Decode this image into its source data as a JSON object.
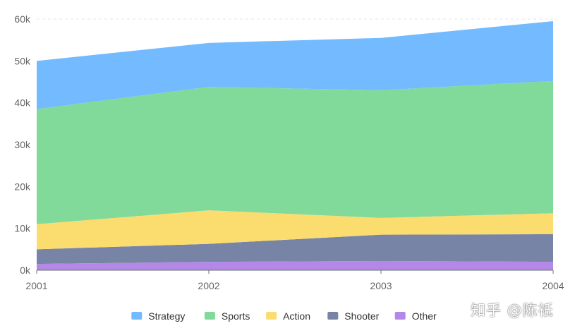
{
  "chart_data": {
    "type": "area",
    "stacked": true,
    "x": [
      "2001",
      "2002",
      "2003",
      "2004"
    ],
    "yticks": [
      "0k",
      "10k",
      "20k",
      "30k",
      "40k",
      "50k",
      "60k"
    ],
    "ylim": [
      0,
      60000
    ],
    "grid": true,
    "legend_position": "bottom",
    "series": [
      {
        "name": "Other",
        "color": "#b388e6",
        "values": [
          1500,
          2000,
          2200,
          2000
        ]
      },
      {
        "name": "Shooter",
        "color": "#7884a6",
        "values": [
          3500,
          4300,
          6300,
          6600
        ]
      },
      {
        "name": "Action",
        "color": "#fbdd6f",
        "values": [
          6000,
          8000,
          4000,
          5000
        ]
      },
      {
        "name": "Sports",
        "color": "#81da9a",
        "values": [
          27500,
          29500,
          30500,
          31600
        ]
      },
      {
        "name": "Strategy",
        "color": "#73baff",
        "values": [
          11500,
          10500,
          12500,
          14300
        ]
      }
    ],
    "legend_order": [
      "Strategy",
      "Sports",
      "Action",
      "Shooter",
      "Other"
    ]
  },
  "watermark": "知乎 @陈祇"
}
